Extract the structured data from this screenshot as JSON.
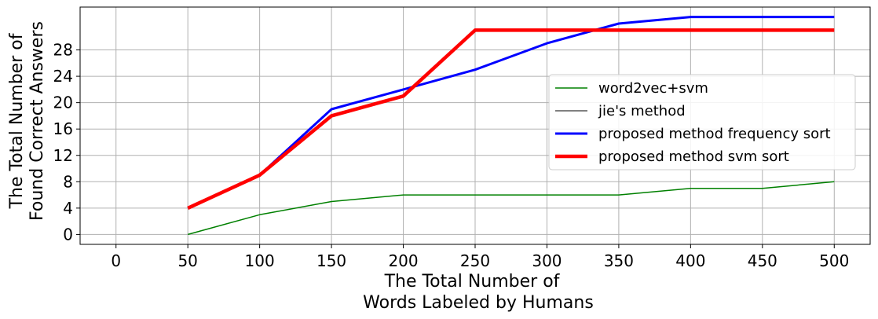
{
  "chart_data": {
    "type": "line",
    "xlabel_lines": [
      "The Total Number of",
      "Words Labeled by Humans"
    ],
    "ylabel_lines": [
      "The Total Number of",
      "Found Correct Answers"
    ],
    "xlim": [
      -25,
      525
    ],
    "ylim": [
      -1.5,
      34.5
    ],
    "xticks": [
      0,
      50,
      100,
      150,
      200,
      250,
      300,
      350,
      400,
      450,
      500
    ],
    "yticks": [
      0,
      4,
      8,
      12,
      16,
      20,
      24,
      28
    ],
    "grid": true,
    "legend_position": "center-right",
    "series": [
      {
        "name": "word2vec+svm",
        "color": "#008000",
        "line_width": 1.5,
        "x": [
          50,
          100,
          150,
          200,
          250,
          300,
          350,
          400,
          450,
          500
        ],
        "y": [
          0,
          3,
          5,
          6,
          6,
          6,
          6,
          7,
          7,
          8
        ]
      },
      {
        "name": "jie's method",
        "color": "#000000",
        "line_width": 1,
        "x": [],
        "y": []
      },
      {
        "name": "proposed method frequency sort",
        "color": "#0000ff",
        "line_width": 3,
        "x": [
          50,
          100,
          150,
          200,
          250,
          300,
          350,
          400,
          450,
          500
        ],
        "y": [
          4,
          9,
          19,
          22,
          25,
          29,
          32,
          33,
          33,
          33
        ]
      },
      {
        "name": "proposed method svm sort",
        "color": "#ff0000",
        "line_width": 4.5,
        "x": [
          50,
          100,
          150,
          200,
          250,
          300,
          350,
          400,
          450,
          500
        ],
        "y": [
          4,
          9,
          18,
          21,
          31,
          31,
          31,
          31,
          31,
          31
        ]
      }
    ]
  }
}
